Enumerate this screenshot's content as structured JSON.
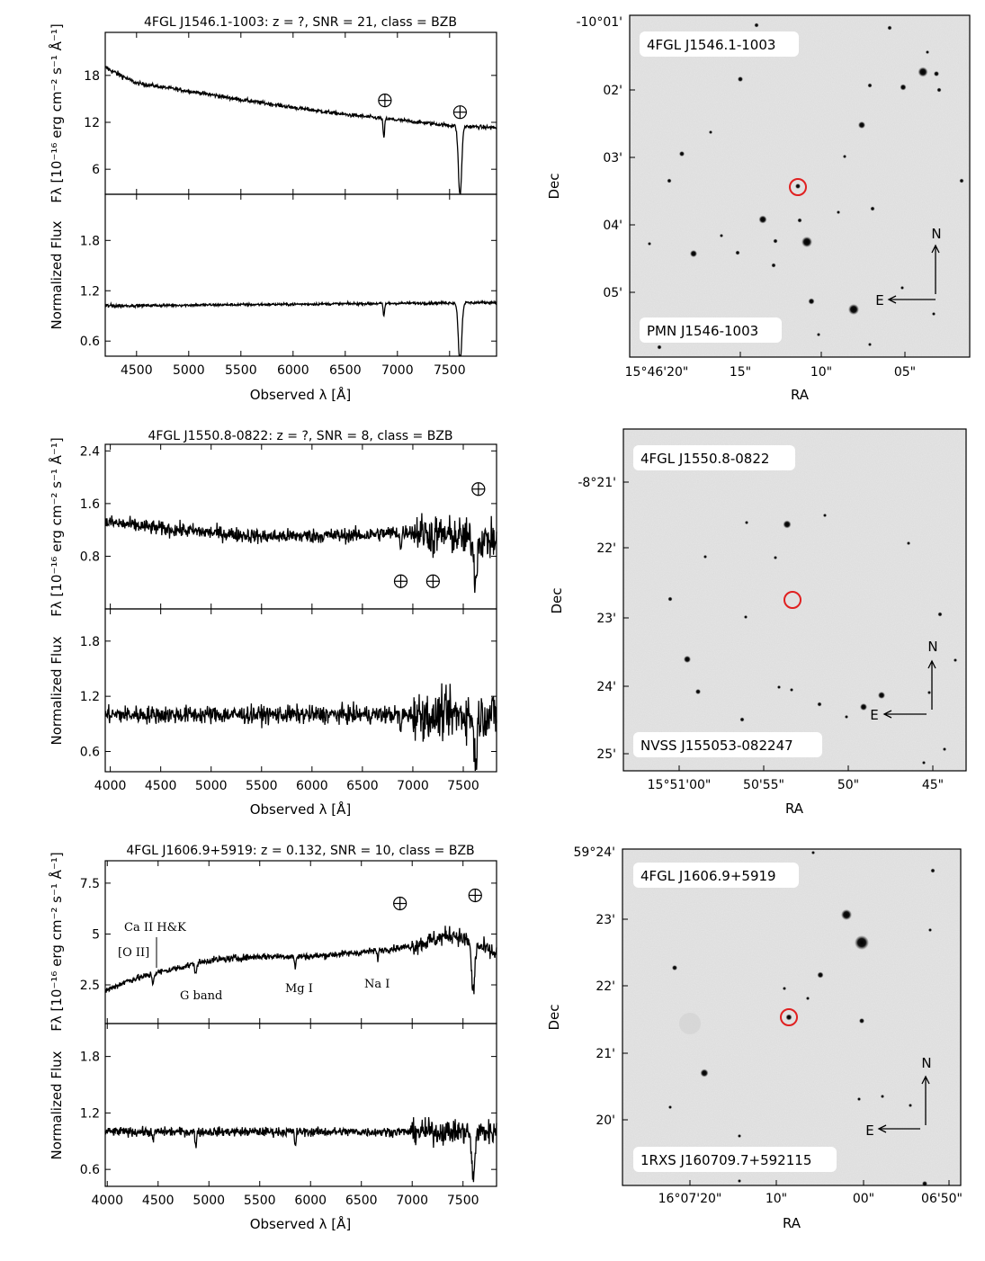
{
  "figure": {
    "rows": [
      {
        "spectrum_title": "4FGL J1546.1-1003: z = ?, SNR = 21, class = BZB",
        "image_labels": {
          "top": "4FGL J1546.1-1003",
          "bottom": "PMN J1546-1003"
        },
        "image_ra_ticks": [
          "15°46'20\"",
          "15\"",
          "10\"",
          "05\""
        ],
        "image_dec_ticks": [
          "-10°01'",
          "02'",
          "03'",
          "04'",
          "05'"
        ],
        "telluric_marks": [
          {
            "x": 6880,
            "y": 14.8
          },
          {
            "x": 7600,
            "y": 13.3
          }
        ],
        "line_labels": [],
        "target_circle": {
          "ra_index": 0.48,
          "dec_index": 0.5
        }
      },
      {
        "spectrum_title": "4FGL J1550.8-0822: z = ?, SNR = 8, class = BZB",
        "image_labels": {
          "top": "4FGL J1550.8-0822",
          "bottom": "NVSS J155053-082247"
        },
        "image_ra_ticks": [
          "15°51'00\"",
          "50'55\"",
          "50\"",
          "45\""
        ],
        "image_dec_ticks": [
          "-8°21'",
          "22'",
          "23'",
          "24'",
          "25'"
        ],
        "telluric_marks": [
          {
            "x": 6880,
            "y": 0.42
          },
          {
            "x": 7200,
            "y": 0.42
          },
          {
            "x": 7650,
            "y": 1.82
          }
        ],
        "line_labels": []
      },
      {
        "spectrum_title": "4FGL J1606.9+5919: z = 0.132, SNR = 10, class = BZB",
        "image_labels": {
          "top": "4FGL J1606.9+5919",
          "bottom": "1RXS J160709.7+592115"
        },
        "image_ra_ticks": [
          "16°07'20\"",
          "10\"",
          "00\"",
          "06'50\""
        ],
        "image_dec_ticks": [
          "59°24'",
          "23'",
          "22'",
          "21'",
          "20'"
        ],
        "telluric_marks": [
          {
            "x": 6880,
            "y": 6.5
          },
          {
            "x": 7620,
            "y": 6.9
          }
        ],
        "line_labels": [
          "Ca II H&K",
          "[O II]",
          "G band",
          "Mg I",
          "Na I"
        ]
      }
    ],
    "axis_labels": {
      "spectrum_x": "Observed λ [Å]",
      "flux_y": "Fλ [10⁻¹⁶ erg cm⁻² s⁻¹ Å⁻¹]",
      "norm_y": "Normalized Flux",
      "image_x": "RA",
      "image_y": "Dec"
    },
    "compass": {
      "north": "N",
      "east": "E"
    }
  },
  "chart_data": [
    {
      "type": "line",
      "panel": "flux",
      "row": 1,
      "title": "4FGL J1546.1-1003: z = ?, SNR = 21, class = BZB",
      "xlabel": "Observed λ [Å]",
      "ylabel": "Fλ [10⁻¹⁶ erg cm⁻² s⁻¹ Å⁻¹]",
      "xlim": [
        4200,
        7950
      ],
      "ylim": [
        2.8,
        23.5
      ],
      "xticks": [
        4500,
        5000,
        5500,
        6000,
        6500,
        7000,
        7500
      ],
      "yticks": [
        6,
        12,
        18
      ],
      "continuum": [
        [
          4200,
          19.0
        ],
        [
          4500,
          17.0
        ],
        [
          5000,
          16.0
        ],
        [
          5500,
          14.9
        ],
        [
          6000,
          13.9
        ],
        [
          6500,
          13.0
        ],
        [
          7000,
          12.3
        ],
        [
          7500,
          11.6
        ],
        [
          7950,
          11.3
        ]
      ],
      "absorption_features": [
        [
          6870,
          2.5
        ],
        [
          7600,
          9.0
        ]
      ],
      "noise": 0.18
    },
    {
      "type": "line",
      "panel": "normalized",
      "row": 1,
      "xlabel": "Observed λ [Å]",
      "ylabel": "Normalized Flux",
      "xlim": [
        4200,
        7950
      ],
      "ylim": [
        0.42,
        2.35
      ],
      "xticks": [
        4500,
        5000,
        5500,
        6000,
        6500,
        7000,
        7500
      ],
      "yticks": [
        0.6,
        1.2,
        1.8
      ],
      "continuum": [
        [
          4200,
          1.02
        ],
        [
          7950,
          1.06
        ]
      ],
      "absorption_features": [
        [
          6870,
          0.15
        ],
        [
          7600,
          0.75
        ]
      ],
      "noise": 0.012
    },
    {
      "type": "line",
      "panel": "flux",
      "row": 2,
      "title": "4FGL J1550.8-0822: z = ?, SNR = 8, class = BZB",
      "xlabel": "Observed λ [Å]",
      "ylabel": "Fλ [10⁻¹⁶ erg cm⁻² s⁻¹ Å⁻¹]",
      "xlim": [
        3950,
        7830
      ],
      "ylim": [
        0.0,
        2.5
      ],
      "xticks": [
        4000,
        4500,
        5000,
        5500,
        6000,
        6500,
        7000,
        7500
      ],
      "yticks": [
        0.8,
        1.6,
        2.4
      ],
      "continuum": [
        [
          3950,
          1.32
        ],
        [
          4500,
          1.22
        ],
        [
          5500,
          1.1
        ],
        [
          6500,
          1.12
        ],
        [
          7000,
          1.18
        ],
        [
          7830,
          1.02
        ]
      ],
      "absorption_features": [
        [
          6880,
          0.3
        ],
        [
          7200,
          0.2
        ],
        [
          7620,
          0.6
        ]
      ],
      "noise": 0.08
    },
    {
      "type": "line",
      "panel": "normalized",
      "row": 2,
      "xlabel": "Observed λ [Å]",
      "ylabel": "Normalized Flux",
      "xlim": [
        3950,
        7830
      ],
      "ylim": [
        0.38,
        2.15
      ],
      "xticks": [
        4000,
        4500,
        5000,
        5500,
        6000,
        6500,
        7000,
        7500
      ],
      "yticks": [
        0.6,
        1.2,
        1.8
      ],
      "continuum": [
        [
          3950,
          1.0
        ],
        [
          7830,
          1.0
        ]
      ],
      "absorption_features": [
        [
          6880,
          0.2
        ],
        [
          7200,
          0.15
        ],
        [
          7620,
          0.5
        ]
      ],
      "noise": 0.07
    },
    {
      "type": "line",
      "panel": "flux",
      "row": 3,
      "title": "4FGL J1606.9+5919: z = 0.132, SNR = 10, class = BZB",
      "xlabel": "Observed λ [Å]",
      "ylabel": "Fλ [10⁻¹⁶ erg cm⁻² s⁻¹ Å⁻¹]",
      "xlim": [
        3980,
        7830
      ],
      "ylim": [
        0.6,
        8.6
      ],
      "xticks": [
        4000,
        4500,
        5000,
        5500,
        6000,
        6500,
        7000,
        7500
      ],
      "yticks": [
        2.5,
        5.0,
        7.5
      ],
      "continuum": [
        [
          3980,
          2.2
        ],
        [
          4200,
          2.7
        ],
        [
          4500,
          3.1
        ],
        [
          5000,
          3.7
        ],
        [
          5500,
          3.9
        ],
        [
          6000,
          3.9
        ],
        [
          6500,
          4.1
        ],
        [
          7000,
          4.4
        ],
        [
          7400,
          5.0
        ],
        [
          7830,
          4.0
        ]
      ],
      "absorption_features": [
        [
          4450,
          0.5
        ],
        [
          4870,
          0.6
        ],
        [
          5850,
          0.6
        ],
        [
          6660,
          0.4
        ],
        [
          7600,
          2.4
        ]
      ],
      "noise": 0.12
    },
    {
      "type": "line",
      "panel": "normalized",
      "row": 3,
      "xlabel": "Observed λ [Å]",
      "ylabel": "Normalized Flux",
      "xlim": [
        3980,
        7830
      ],
      "ylim": [
        0.42,
        2.15
      ],
      "xticks": [
        4000,
        4500,
        5000,
        5500,
        6000,
        6500,
        7000,
        7500
      ],
      "yticks": [
        0.6,
        1.2,
        1.8
      ],
      "continuum": [
        [
          3980,
          1.0
        ],
        [
          7830,
          1.0
        ]
      ],
      "absorption_features": [
        [
          4450,
          0.12
        ],
        [
          4870,
          0.15
        ],
        [
          5850,
          0.15
        ],
        [
          7600,
          0.5
        ]
      ],
      "noise": 0.035
    }
  ]
}
